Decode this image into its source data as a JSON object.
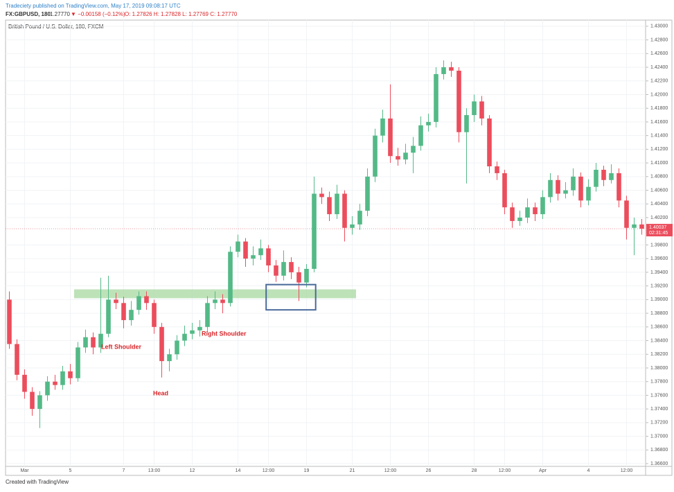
{
  "header": {
    "published": "Tradeciety published on TradingView.com, May 17, 2019 09:08:17 UTC",
    "symbol": "FX:GBPUSD, 180",
    "price": "1.27770",
    "change": "▼ −0.00158 (−0.12%)",
    "ohlc": "O: 1.27826 H: 1.27828 L: 1.27769 C: 1.27770",
    "footer": "Created with TradingView"
  },
  "chart_data": {
    "type": "candlestick",
    "title": "British Pound / U.S. Dollar, 180, FXCM",
    "categories": [
      null,
      null,
      "Mar",
      null,
      null,
      null,
      null,
      null,
      "5",
      null,
      null,
      null,
      null,
      null,
      null,
      "7",
      null,
      null,
      null,
      "13:00",
      null,
      null,
      null,
      null,
      "12",
      null,
      null,
      null,
      null,
      null,
      "14",
      null,
      null,
      null,
      "12:00",
      null,
      null,
      null,
      null,
      "19",
      null,
      null,
      null,
      null,
      null,
      "21",
      null,
      null,
      null,
      null,
      "12:00",
      null,
      null,
      null,
      null,
      "26",
      null,
      null,
      null,
      null,
      null,
      "28",
      null,
      null,
      null,
      "12:00",
      null,
      null,
      null,
      null,
      "Apr",
      null,
      null,
      null,
      null,
      null,
      "4",
      null,
      null,
      null,
      null,
      "12:00",
      null,
      null
    ],
    "open": [
      1.39,
      1.3835,
      1.379,
      1.3765,
      1.374,
      1.376,
      1.378,
      1.3775,
      1.3795,
      1.3785,
      1.383,
      1.3845,
      1.383,
      1.385,
      1.39,
      1.3895,
      1.387,
      1.3885,
      1.3905,
      1.3895,
      1.386,
      1.381,
      1.382,
      1.384,
      1.385,
      1.3855,
      1.386,
      1.3895,
      1.39,
      1.3895,
      1.397,
      1.3985,
      1.396,
      1.3965,
      1.3975,
      1.395,
      1.3935,
      1.3955,
      1.394,
      1.3925,
      1.3945,
      1.4055,
      1.405,
      1.4025,
      1.4055,
      1.4005,
      1.401,
      1.403,
      1.408,
      1.414,
      1.4165,
      1.411,
      1.4105,
      1.4115,
      1.4125,
      1.4155,
      1.416,
      1.423,
      1.424,
      1.4235,
      1.4145,
      1.417,
      1.419,
      1.4165,
      1.4095,
      1.4085,
      1.4035,
      1.4015,
      1.402,
      1.4035,
      1.4025,
      1.405,
      1.4075,
      1.4055,
      1.406,
      1.408,
      1.4045,
      1.4065,
      1.409,
      1.4075,
      1.4085,
      1.4045,
      1.4005,
      1.401
    ],
    "high": [
      1.3912,
      1.3842,
      1.3798,
      1.3772,
      1.3766,
      1.3788,
      1.379,
      1.3803,
      1.3806,
      1.3838,
      1.3856,
      1.3852,
      1.3932,
      1.3935,
      1.391,
      1.3904,
      1.3898,
      1.3912,
      1.3912,
      1.39,
      1.3866,
      1.3828,
      1.3848,
      1.3862,
      1.3866,
      1.387,
      1.3905,
      1.3912,
      1.3908,
      1.3978,
      1.3995,
      1.399,
      1.3978,
      1.3988,
      1.398,
      1.3958,
      1.3972,
      1.3962,
      1.3948,
      1.3952,
      1.408,
      1.4064,
      1.4058,
      1.4068,
      1.406,
      1.4022,
      1.404,
      1.4092,
      1.415,
      1.4178,
      1.4215,
      1.4122,
      1.4128,
      1.4138,
      1.4168,
      1.4172,
      1.424,
      1.425,
      1.4248,
      1.424,
      1.418,
      1.42,
      1.4198,
      1.417,
      1.4102,
      1.409,
      1.4042,
      1.403,
      1.4048,
      1.4042,
      1.406,
      1.4085,
      1.4082,
      1.4072,
      1.4092,
      1.4086,
      1.4076,
      1.41,
      1.4096,
      1.4098,
      1.4092,
      1.4052,
      1.402,
      1.4018
    ],
    "low": [
      1.3828,
      1.3782,
      1.3755,
      1.373,
      1.3712,
      1.3752,
      1.3768,
      1.3768,
      1.3776,
      1.378,
      1.3822,
      1.382,
      1.3822,
      1.3845,
      1.3886,
      1.3858,
      1.3862,
      1.3878,
      1.3885,
      1.385,
      1.3786,
      1.3795,
      1.3812,
      1.3832,
      1.3842,
      1.3846,
      1.3852,
      1.3886,
      1.388,
      1.389,
      1.3962,
      1.3948,
      1.395,
      1.3958,
      1.394,
      1.3926,
      1.3928,
      1.393,
      1.3898,
      1.3918,
      1.394,
      1.404,
      1.4015,
      1.4018,
      1.3985,
      1.3995,
      1.4002,
      1.4022,
      1.4072,
      1.413,
      1.41,
      1.4096,
      1.4098,
      1.4085,
      1.4118,
      1.4146,
      1.4152,
      1.4222,
      1.4226,
      1.413,
      1.407,
      1.416,
      1.4155,
      1.4085,
      1.4075,
      1.4025,
      1.4005,
      1.4008,
      1.4012,
      1.4015,
      1.4018,
      1.4042,
      1.4045,
      1.4048,
      1.4052,
      1.4035,
      1.4038,
      1.4058,
      1.4066,
      1.407,
      1.4035,
      1.3988,
      1.3965,
      1.3995
    ],
    "close": [
      1.3835,
      1.379,
      1.3765,
      1.374,
      1.376,
      1.378,
      1.3775,
      1.3795,
      1.3785,
      1.383,
      1.3845,
      1.383,
      1.385,
      1.39,
      1.3895,
      1.387,
      1.3885,
      1.3905,
      1.3895,
      1.386,
      1.381,
      1.382,
      1.384,
      1.385,
      1.3855,
      1.386,
      1.3895,
      1.39,
      1.3895,
      1.397,
      1.3985,
      1.396,
      1.3965,
      1.3975,
      1.395,
      1.3935,
      1.3955,
      1.394,
      1.3925,
      1.3945,
      1.4055,
      1.405,
      1.4025,
      1.4055,
      1.4005,
      1.401,
      1.403,
      1.408,
      1.414,
      1.4165,
      1.411,
      1.4105,
      1.4115,
      1.4125,
      1.4155,
      1.416,
      1.423,
      1.424,
      1.4235,
      1.4145,
      1.417,
      1.419,
      1.4165,
      1.4095,
      1.4085,
      1.4035,
      1.4015,
      1.402,
      1.4035,
      1.4025,
      1.405,
      1.4075,
      1.4055,
      1.406,
      1.408,
      1.4045,
      1.4065,
      1.409,
      1.4075,
      1.4085,
      1.4045,
      1.4005,
      1.401,
      1.40037
    ],
    "up_color": "#53b987",
    "down_color": "#eb4d5c",
    "ylim": [
      1.3656,
      1.4309
    ],
    "yticks": [
      {
        "value": 1.43,
        "label": "1.43000"
      },
      {
        "value": 1.428,
        "label": "1.42800"
      },
      {
        "value": 1.426,
        "label": "1.42600"
      },
      {
        "value": 1.424,
        "label": "1.42400"
      },
      {
        "value": 1.422,
        "label": "1.42200"
      },
      {
        "value": 1.42,
        "label": "1.42000"
      },
      {
        "value": 1.418,
        "label": "1.41800"
      },
      {
        "value": 1.416,
        "label": "1.41600"
      },
      {
        "value": 1.414,
        "label": "1.41400"
      },
      {
        "value": 1.412,
        "label": "1.41200"
      },
      {
        "value": 1.41,
        "label": "1.41000"
      },
      {
        "value": 1.408,
        "label": "1.40800"
      },
      {
        "value": 1.406,
        "label": "1.40600"
      },
      {
        "value": 1.404,
        "label": "1.40400"
      },
      {
        "value": 1.402,
        "label": "1.40200"
      },
      {
        "value": 1.398,
        "label": "1.39800"
      },
      {
        "value": 1.396,
        "label": "1.39600"
      },
      {
        "value": 1.394,
        "label": "1.39400"
      },
      {
        "value": 1.392,
        "label": "1.39200"
      },
      {
        "value": 1.39,
        "label": "1.39000"
      },
      {
        "value": 1.388,
        "label": "1.38800"
      },
      {
        "value": 1.386,
        "label": "1.38600"
      },
      {
        "value": 1.384,
        "label": "1.38400"
      },
      {
        "value": 1.382,
        "label": "1.38200"
      },
      {
        "value": 1.38,
        "label": "1.38000"
      },
      {
        "value": 1.378,
        "label": "1.37800"
      },
      {
        "value": 1.376,
        "label": "1.37600"
      },
      {
        "value": 1.374,
        "label": "1.37400"
      },
      {
        "value": 1.372,
        "label": "1.37200"
      },
      {
        "value": 1.37,
        "label": "1.37000"
      },
      {
        "value": 1.368,
        "label": "1.36800"
      },
      {
        "value": 1.366,
        "label": "1.36600"
      }
    ],
    "grid": true,
    "last_price": {
      "value": 1.40037,
      "label": "1.40037",
      "countdown": "02:31:45"
    },
    "zone": [
      1.3902,
      1.3915
    ],
    "zone_color": "#a8d8a0",
    "box": [
      1.3885,
      1.3922
    ],
    "box_color": "#4a6a9a",
    "annotations": [
      "Left Shoulder",
      "Head",
      "Right Shoulder"
    ],
    "annotation_color": "#d9262a"
  }
}
